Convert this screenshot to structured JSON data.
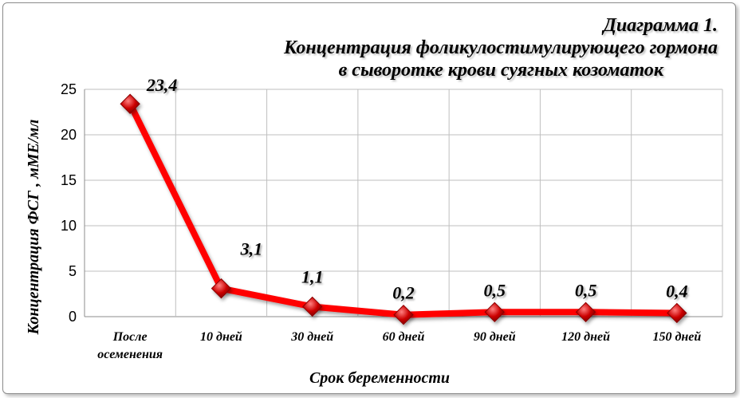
{
  "chart_data": {
    "type": "line",
    "title_lines": [
      "Диаграмма 1.",
      "Концентрация фоликулостимулирующего гормона",
      "в сыворотке крови суягных козоматок"
    ],
    "xlabel": "Срок беременности",
    "ylabel": "Концентрация  ФСГ , мМЕ/мл",
    "categories": [
      [
        "После",
        "осеменения"
      ],
      [
        "10 дней"
      ],
      [
        "30 дней"
      ],
      [
        "60 дней"
      ],
      [
        "90 дней"
      ],
      [
        "120 дней"
      ],
      [
        "150 дней"
      ]
    ],
    "values": [
      23.4,
      3.1,
      1.1,
      0.2,
      0.5,
      0.5,
      0.4
    ],
    "data_labels": [
      "23,4",
      "3,1",
      "1,1",
      "0,2",
      "0,5",
      "0,5",
      "0,4"
    ],
    "ylim": [
      0,
      25
    ],
    "yticks": [
      0,
      5,
      10,
      15,
      20,
      25
    ],
    "grid": true,
    "legend": "none",
    "colors": {
      "line": "#ff0000",
      "marker": "#cc0000",
      "grid": "#bfbfbf"
    }
  }
}
